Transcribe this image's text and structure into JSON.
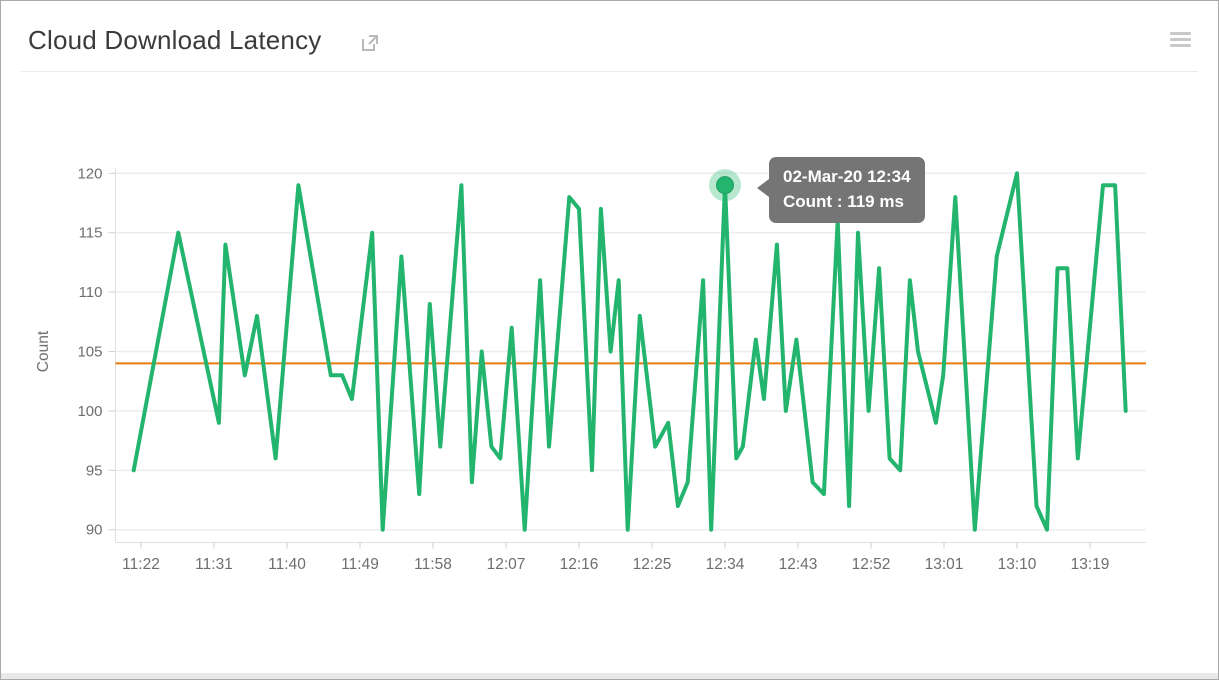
{
  "header": {
    "title": "Cloud Download Latency",
    "external_link_icon": "open-in-new-icon",
    "menu_icon": "hamburger-icon"
  },
  "tooltip": {
    "line1": "02-Mar-20 12:34",
    "line2": "Count : 119 ms"
  },
  "colors": {
    "line_green": "#23b46e",
    "halo_green": "rgba(35,180,110,0.32)",
    "threshold_orange": "#e87b0e",
    "grid": "#ededed",
    "axis_line": "#e0e0e0",
    "tick_stub": "#cfcfcf",
    "tick_text": "#6e6e6e",
    "tooltip_bg": "#757575"
  },
  "chart_data": {
    "type": "line",
    "title": "Cloud Download Latency",
    "xlabel": "",
    "ylabel": "Count",
    "unit": "ms",
    "ylim": [
      90,
      120
    ],
    "yticks": [
      120,
      115,
      110,
      105,
      100,
      95,
      90
    ],
    "grid": true,
    "legend_position": "none",
    "x_tick_interval_minutes": 9,
    "xtick_labels": [
      "11:22",
      "11:31",
      "11:40",
      "11:49",
      "11:58",
      "12:07",
      "12:16",
      "12:25",
      "12:34",
      "12:43",
      "12:52",
      "13:01",
      "13:10",
      "13:19"
    ],
    "threshold": {
      "value": 104
    },
    "highlight": {
      "t": 72,
      "v": 119,
      "date": "02-Mar-20",
      "time": "12:34",
      "count_label": "Count : 119 ms"
    },
    "points_format": "[minutes_after_11:22, count_ms]",
    "points": [
      [
        -0.9,
        95
      ],
      [
        4.6,
        115
      ],
      [
        9.6,
        99
      ],
      [
        10.4,
        114
      ],
      [
        12.8,
        103
      ],
      [
        14.3,
        108
      ],
      [
        16.6,
        96
      ],
      [
        19.4,
        119
      ],
      [
        23.4,
        103
      ],
      [
        24.8,
        103
      ],
      [
        26,
        101
      ],
      [
        28.5,
        115
      ],
      [
        29.8,
        90
      ],
      [
        32.1,
        113
      ],
      [
        34.3,
        93
      ],
      [
        35.6,
        109
      ],
      [
        36.9,
        97
      ],
      [
        39.5,
        119
      ],
      [
        40.8,
        94
      ],
      [
        42,
        105
      ],
      [
        43.2,
        97
      ],
      [
        44.3,
        96
      ],
      [
        45.7,
        107
      ],
      [
        47.3,
        90
      ],
      [
        49.2,
        111
      ],
      [
        50.3,
        97
      ],
      [
        52.8,
        118
      ],
      [
        54,
        117
      ],
      [
        55.6,
        95
      ],
      [
        56.7,
        117
      ],
      [
        57.9,
        105
      ],
      [
        58.9,
        111
      ],
      [
        60,
        90
      ],
      [
        61.5,
        108
      ],
      [
        63.4,
        97
      ],
      [
        65,
        99
      ],
      [
        66.2,
        92
      ],
      [
        67.4,
        94
      ],
      [
        69.3,
        111
      ],
      [
        70.3,
        90
      ],
      [
        72,
        119
      ],
      [
        73.4,
        96
      ],
      [
        74.2,
        97
      ],
      [
        75.8,
        106
      ],
      [
        76.8,
        101
      ],
      [
        78.4,
        114
      ],
      [
        79.5,
        100
      ],
      [
        80.8,
        106
      ],
      [
        82.8,
        94
      ],
      [
        84.2,
        93
      ],
      [
        85.9,
        116
      ],
      [
        87.3,
        92
      ],
      [
        88.4,
        115
      ],
      [
        89.7,
        100
      ],
      [
        91,
        112
      ],
      [
        92.3,
        96
      ],
      [
        93.6,
        95
      ],
      [
        94.8,
        111
      ],
      [
        95.8,
        105
      ],
      [
        98,
        99
      ],
      [
        98.9,
        103
      ],
      [
        100.4,
        118
      ],
      [
        102.8,
        90
      ],
      [
        105.5,
        113
      ],
      [
        108,
        120
      ],
      [
        110.4,
        92
      ],
      [
        111.7,
        90
      ],
      [
        113,
        112
      ],
      [
        114.2,
        112
      ],
      [
        115.5,
        96
      ],
      [
        118.6,
        119
      ],
      [
        120.1,
        119
      ],
      [
        121.4,
        100
      ]
    ]
  }
}
